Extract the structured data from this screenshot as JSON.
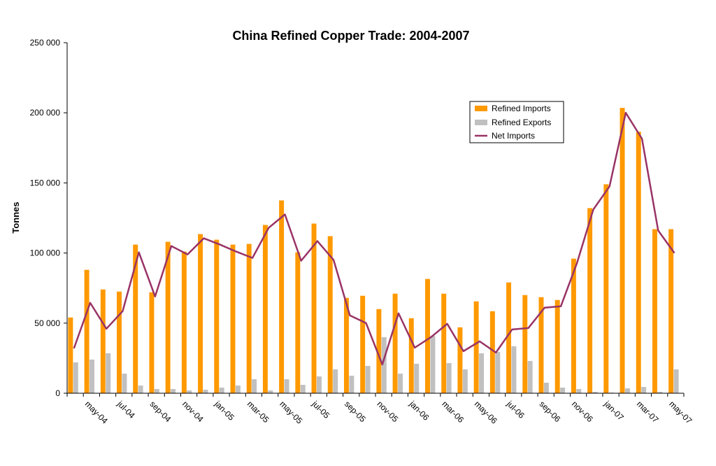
{
  "chart_data": {
    "type": "bar",
    "title": "China Refined Copper Trade: 2004-2007",
    "xlabel": "",
    "ylabel": "Tonnes",
    "ylim": [
      0,
      250000
    ],
    "yticks": [
      0,
      50000,
      100000,
      150000,
      200000,
      250000
    ],
    "ytick_labels": [
      "0",
      "50 000",
      "100 000",
      "150 000",
      "200 000",
      "250 000"
    ],
    "grid": false,
    "legend_position": "upper-right",
    "categories": [
      "apr-04",
      "may-04",
      "jun-04",
      "jul-04",
      "aug-04",
      "sep-04",
      "oct-04",
      "nov-04",
      "dec-04",
      "jan-05",
      "feb-05",
      "mar-05",
      "apr-05",
      "may-05",
      "jun-05",
      "jul-05",
      "aug-05",
      "sep-05",
      "oct-05",
      "nov-05",
      "dec-05",
      "jan-06",
      "feb-06",
      "mar-06",
      "apr-06",
      "may-06",
      "jun-06",
      "jul-06",
      "aug-06",
      "sep-06",
      "oct-06",
      "nov-06",
      "dec-06",
      "jan-07",
      "feb-07",
      "mar-07",
      "apr-07",
      "may-07"
    ],
    "xtick_labels": [
      "may-04",
      "jul-04",
      "sep-04",
      "nov-04",
      "jan-05",
      "mar-05",
      "may-05",
      "jul-05",
      "sep-05",
      "nov-05",
      "jan-06",
      "mar-06",
      "may-06",
      "jul-06",
      "sep-06",
      "nov-06",
      "jan-07",
      "mar-07",
      "may-07"
    ],
    "series": [
      {
        "name": "Refined Imports",
        "kind": "bar",
        "color": "#ff9900",
        "values": [
          54000,
          88000,
          74000,
          72500,
          106000,
          72000,
          108000,
          101000,
          113500,
          109500,
          106000,
          106500,
          120000,
          137500,
          100500,
          121000,
          112000,
          68000,
          69500,
          60000,
          71000,
          53500,
          81500,
          71000,
          47000,
          65500,
          58500,
          79000,
          70000,
          68500,
          66500,
          96000,
          132000,
          149000,
          203500,
          186500,
          117000,
          117000
        ]
      },
      {
        "name": "Refined Exports",
        "kind": "bar",
        "color": "#c0c0c0",
        "values": [
          22000,
          24000,
          28500,
          14000,
          5500,
          3000,
          3000,
          2000,
          2500,
          4000,
          5500,
          10000,
          2000,
          10000,
          6000,
          12000,
          17000,
          12500,
          19500,
          40000,
          14000,
          21000,
          41000,
          21500,
          17000,
          28500,
          29500,
          33500,
          23000,
          7500,
          4000,
          3000,
          1000,
          500,
          3500,
          4500,
          1000,
          17000
        ]
      },
      {
        "name": "Net Imports",
        "kind": "line",
        "color": "#993366",
        "values": [
          32000,
          64500,
          46000,
          58500,
          100500,
          69000,
          105000,
          99000,
          110500,
          106000,
          101000,
          96500,
          118000,
          127500,
          94500,
          108500,
          95000,
          55500,
          50000,
          20500,
          57000,
          32500,
          40000,
          49500,
          30000,
          37000,
          29000,
          45500,
          46500,
          61000,
          62000,
          93000,
          131000,
          147500,
          200000,
          181500,
          116000,
          100000
        ]
      }
    ]
  }
}
